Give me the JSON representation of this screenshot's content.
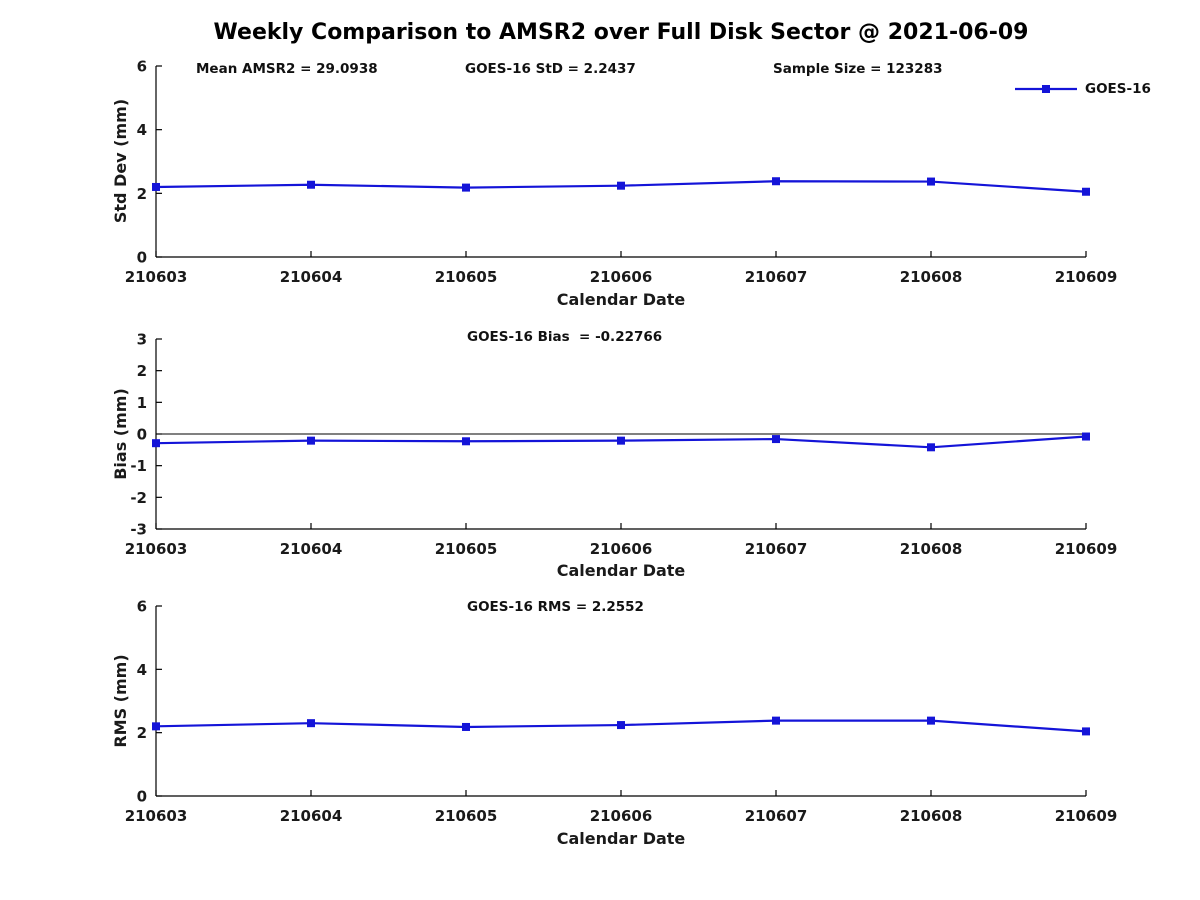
{
  "figure": {
    "title": "Weekly Comparison to AMSR2 over Full Disk Sector @ 2021-06-09",
    "background": "#ffffff"
  },
  "legend": {
    "label": "GOES-16",
    "color": "#1414d8",
    "marker": "square"
  },
  "chart_data": [
    {
      "type": "line",
      "ylabel": "Std Dev (mm)",
      "xlabel": "Calendar Date",
      "annotations": [
        "Mean AMSR2 = 29.0938",
        "GOES-16 StD = 2.2437",
        "Sample Size = 123283"
      ],
      "categories": [
        "210603",
        "210604",
        "210605",
        "210606",
        "210607",
        "210608",
        "210609"
      ],
      "ylim": [
        0,
        6
      ],
      "yticks": [
        0,
        2,
        4,
        6
      ],
      "zero_line": false,
      "grid": false,
      "series": [
        {
          "name": "GOES-16",
          "color": "#1414d8",
          "marker": "square",
          "values": [
            2.2,
            2.27,
            2.18,
            2.24,
            2.38,
            2.37,
            2.05
          ]
        }
      ]
    },
    {
      "type": "line",
      "ylabel": "Bias (mm)",
      "xlabel": "Calendar Date",
      "annotations": [
        "GOES-16 Bias  = -0.22766"
      ],
      "categories": [
        "210603",
        "210604",
        "210605",
        "210606",
        "210607",
        "210608",
        "210609"
      ],
      "ylim": [
        -3,
        3
      ],
      "yticks": [
        -3,
        -2,
        -1,
        0,
        1,
        2,
        3
      ],
      "zero_line": true,
      "grid": false,
      "series": [
        {
          "name": "GOES-16",
          "color": "#1414d8",
          "marker": "square",
          "values": [
            -0.29,
            -0.21,
            -0.23,
            -0.21,
            -0.16,
            -0.42,
            -0.08
          ]
        }
      ]
    },
    {
      "type": "line",
      "ylabel": "RMS (mm)",
      "xlabel": "Calendar Date",
      "annotations": [
        "GOES-16 RMS = 2.2552"
      ],
      "categories": [
        "210603",
        "210604",
        "210605",
        "210606",
        "210607",
        "210608",
        "210609"
      ],
      "ylim": [
        0,
        6
      ],
      "yticks": [
        0,
        2,
        4,
        6
      ],
      "zero_line": false,
      "grid": false,
      "series": [
        {
          "name": "GOES-16",
          "color": "#1414d8",
          "marker": "square",
          "values": [
            2.2,
            2.3,
            2.18,
            2.24,
            2.38,
            2.38,
            2.04
          ]
        }
      ]
    }
  ]
}
